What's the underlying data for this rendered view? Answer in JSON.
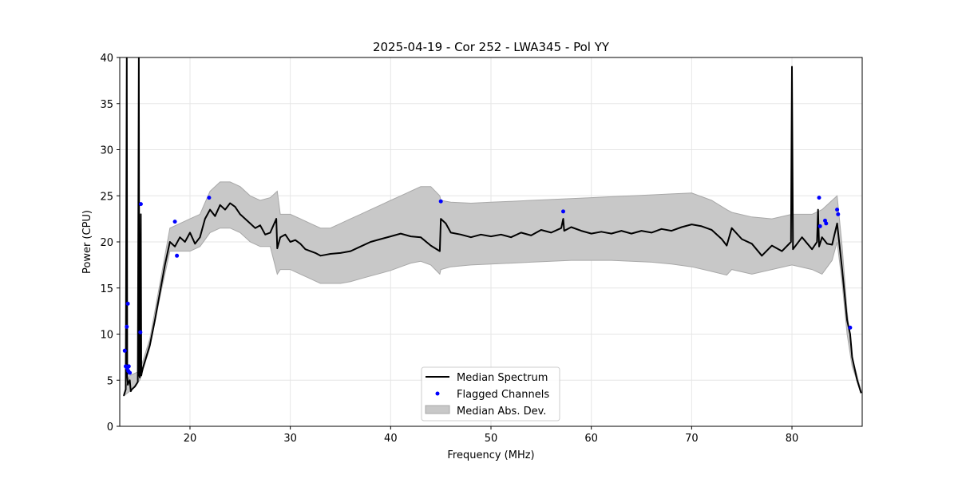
{
  "chart_data": {
    "type": "line",
    "title": "2025-04-19 - Cor 252 - LWA345 - Pol YY",
    "xlabel": "Frequency (MHz)",
    "ylabel": "Power (CPU)",
    "xlim": [
      13,
      87
    ],
    "ylim": [
      0,
      40
    ],
    "xticks": [
      20,
      30,
      40,
      50,
      60,
      70,
      80
    ],
    "yticks": [
      0,
      5,
      10,
      15,
      20,
      25,
      30,
      35,
      40
    ],
    "xtick_labels": [
      "20",
      "30",
      "40",
      "50",
      "60",
      "70",
      "80"
    ],
    "ytick_labels": [
      "0",
      "5",
      "10",
      "15",
      "20",
      "25",
      "30",
      "35",
      "40"
    ],
    "grid": true,
    "legend_position": "lower center",
    "legend": [
      "Median Spectrum",
      "Flagged Channels",
      "Median Abs. Dev."
    ],
    "series": [
      {
        "name": "Median Spectrum",
        "color": "#000000",
        "x": [
          13.4,
          13.6,
          13.7,
          13.75,
          13.8,
          13.9,
          14.0,
          14.1,
          14.2,
          14.5,
          14.8,
          14.9,
          14.95,
          15.0,
          15.1,
          15.15,
          15.2,
          15.3,
          15.5,
          16.0,
          16.5,
          17.0,
          17.5,
          18.0,
          18.5,
          19.0,
          19.5,
          20.0,
          20.5,
          21.0,
          21.5,
          22.0,
          22.5,
          23.0,
          23.5,
          24.0,
          24.5,
          25.0,
          25.5,
          26.0,
          26.5,
          27.0,
          27.5,
          28.0,
          28.6,
          28.7,
          29.0,
          29.5,
          30.0,
          30.5,
          31.0,
          31.5,
          32.0,
          32.5,
          33.0,
          33.5,
          34.0,
          35.0,
          36.0,
          37.0,
          38.0,
          39.0,
          40.0,
          41.0,
          42.0,
          43.0,
          44.0,
          44.9,
          45.0,
          45.5,
          46.0,
          47.0,
          48.0,
          49.0,
          50.0,
          51.0,
          52.0,
          53.0,
          54.0,
          55.0,
          56.0,
          57.0,
          57.2,
          57.3,
          58.0,
          59.0,
          60.0,
          61.0,
          62.0,
          63.0,
          64.0,
          65.0,
          66.0,
          67.0,
          68.0,
          69.0,
          70.0,
          71.0,
          72.0,
          73.0,
          73.5,
          74.0,
          75.0,
          76.0,
          77.0,
          78.0,
          79.0,
          79.9,
          80.0,
          80.1,
          81.0,
          82.0,
          82.5,
          82.6,
          82.7,
          83.0,
          83.5,
          84.0,
          84.5,
          85.0,
          85.5,
          85.8,
          86.0,
          86.5,
          86.9
        ],
        "y": [
          3.3,
          4.0,
          40.0,
          5.5,
          4.5,
          4.8,
          5.0,
          3.8,
          4.0,
          4.3,
          4.8,
          40.0,
          5.5,
          5.3,
          23.0,
          5.5,
          5.8,
          6.3,
          7.0,
          8.8,
          11.5,
          14.5,
          17.5,
          20.0,
          19.5,
          20.5,
          20.0,
          21.0,
          19.8,
          20.5,
          22.5,
          23.5,
          22.8,
          24.0,
          23.5,
          24.2,
          23.8,
          23.0,
          22.5,
          22.0,
          21.5,
          21.8,
          20.8,
          21.0,
          22.5,
          19.3,
          20.5,
          20.8,
          20.0,
          20.2,
          19.8,
          19.2,
          19.0,
          18.8,
          18.5,
          18.6,
          18.7,
          18.8,
          19.0,
          19.5,
          20.0,
          20.3,
          20.6,
          20.9,
          20.6,
          20.5,
          19.6,
          19.0,
          22.5,
          22.0,
          21.0,
          20.8,
          20.5,
          20.8,
          20.6,
          20.8,
          20.5,
          21.0,
          20.7,
          21.3,
          21.0,
          21.5,
          22.5,
          21.2,
          21.6,
          21.2,
          20.9,
          21.1,
          20.9,
          21.2,
          20.9,
          21.2,
          21.0,
          21.4,
          21.2,
          21.6,
          21.9,
          21.7,
          21.3,
          20.3,
          19.6,
          21.5,
          20.3,
          19.8,
          18.5,
          19.6,
          19.0,
          20.0,
          39.0,
          19.2,
          20.5,
          19.2,
          20.0,
          23.5,
          19.5,
          20.5,
          19.8,
          19.7,
          22.0,
          17.0,
          11.5,
          10.0,
          7.5,
          5.0,
          3.6
        ]
      },
      {
        "name": "Flagged Channels",
        "color": "#0000ff",
        "x": [
          13.5,
          13.6,
          13.7,
          13.75,
          13.8,
          13.85,
          13.9,
          14.0,
          15.05,
          15.1,
          18.5,
          18.7,
          21.9,
          45.0,
          57.2,
          82.7,
          82.8,
          83.3,
          83.4,
          84.5,
          84.6,
          85.8
        ],
        "y": [
          8.2,
          6.5,
          10.8,
          6.3,
          13.3,
          6.0,
          6.5,
          5.8,
          10.2,
          24.1,
          22.2,
          18.5,
          24.8,
          24.4,
          23.3,
          24.8,
          21.7,
          22.3,
          22.0,
          23.5,
          23.0,
          10.7
        ]
      }
    ],
    "band": {
      "name": "Median Abs. Dev.",
      "color": "#c8c8c8",
      "x": [
        13.4,
        14.0,
        15.0,
        16.0,
        17.0,
        18.0,
        19.0,
        20.0,
        21.0,
        22.0,
        23.0,
        24.0,
        25.0,
        26.0,
        27.0,
        28.0,
        28.7,
        29.0,
        30.0,
        31.0,
        32.0,
        33.0,
        34.0,
        35.0,
        36.0,
        37.0,
        38.0,
        39.0,
        40.0,
        41.0,
        42.0,
        43.0,
        44.0,
        44.9,
        45.0,
        46.0,
        48.0,
        50.0,
        52.0,
        54.0,
        56.0,
        58.0,
        60.0,
        62.0,
        64.0,
        66.0,
        68.0,
        70.0,
        72.0,
        73.5,
        74.0,
        76.0,
        78.0,
        80.0,
        82.0,
        83.0,
        84.0,
        84.5,
        85.0,
        85.5,
        86.0,
        86.9
      ],
      "lower": [
        3.3,
        3.8,
        5.0,
        8.5,
        14.0,
        19.0,
        19.0,
        19.0,
        19.5,
        21.0,
        21.5,
        21.5,
        21.0,
        20.0,
        19.5,
        19.5,
        16.5,
        17.0,
        17.0,
        16.5,
        16.0,
        15.5,
        15.5,
        15.5,
        15.7,
        16.0,
        16.3,
        16.6,
        16.9,
        17.3,
        17.7,
        17.9,
        17.5,
        16.5,
        17.0,
        17.3,
        17.5,
        17.6,
        17.7,
        17.8,
        17.9,
        18.0,
        18.0,
        18.0,
        17.9,
        17.8,
        17.6,
        17.3,
        16.8,
        16.4,
        17.0,
        16.5,
        17.0,
        17.5,
        17.0,
        16.5,
        18.0,
        20.0,
        15.5,
        10.0,
        6.5,
        3.6
      ],
      "upper": [
        3.5,
        5.5,
        6.0,
        9.5,
        15.5,
        21.5,
        22.0,
        22.5,
        23.0,
        25.5,
        26.5,
        26.5,
        26.0,
        25.0,
        24.5,
        24.8,
        25.5,
        23.0,
        23.0,
        22.5,
        22.0,
        21.5,
        21.5,
        22.0,
        22.5,
        23.0,
        23.5,
        24.0,
        24.5,
        25.0,
        25.5,
        26.0,
        26.0,
        25.0,
        24.5,
        24.3,
        24.2,
        24.3,
        24.4,
        24.5,
        24.6,
        24.7,
        24.8,
        24.9,
        25.0,
        25.1,
        25.2,
        25.3,
        24.5,
        23.5,
        23.2,
        22.7,
        22.5,
        23.0,
        23.0,
        23.5,
        24.5,
        25.0,
        19.5,
        12.5,
        7.5,
        3.8
      ]
    }
  }
}
